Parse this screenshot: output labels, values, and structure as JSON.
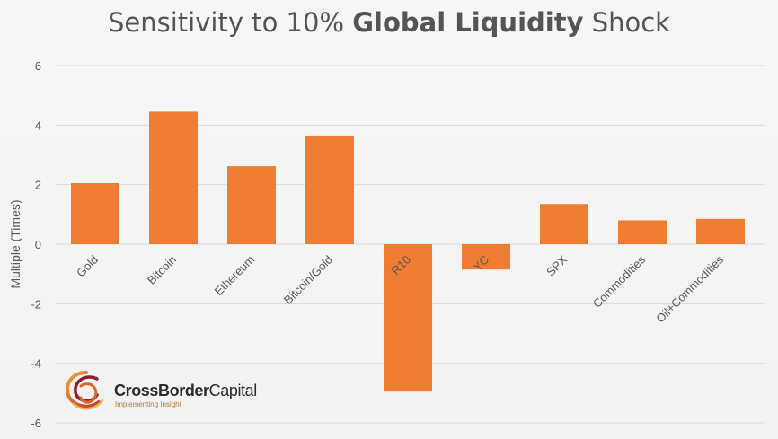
{
  "title": {
    "part1": "Sensitivity to 10% ",
    "part2": "Global Liquidity",
    "part3": " Shock"
  },
  "logo": {
    "name_bold": "CrossBorder",
    "name_regular": "Capital",
    "tagline": "Implementing Insight"
  },
  "colors": {
    "bar": "#ef7d32",
    "grid": "#d9d9d9",
    "text": "#595959"
  },
  "chart_data": {
    "type": "bar",
    "title": "Sensitivity to 10% Global Liquidity Shock",
    "ylabel": "Multiple (Times)",
    "xlabel": "",
    "categories": [
      "Gold",
      "Bitcoin",
      "Ethereum",
      "Bitcoin/Gold",
      "R10",
      "YC",
      "SPX",
      "Commodities",
      "Oil+Commodities"
    ],
    "values": [
      2.05,
      4.45,
      2.62,
      3.65,
      -4.95,
      -0.85,
      1.35,
      0.8,
      0.85
    ],
    "ylim": [
      -6,
      6
    ],
    "yticks": [
      6,
      4,
      2,
      0,
      -2,
      -4,
      -6
    ],
    "grid": true,
    "legend": "none"
  }
}
